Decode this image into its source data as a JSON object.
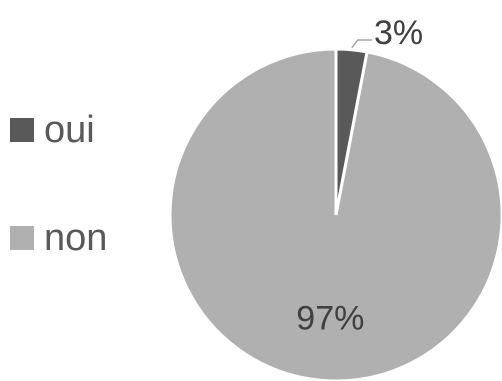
{
  "chart_data": {
    "type": "pie",
    "categories": [
      "oui",
      "non"
    ],
    "values": [
      3,
      97
    ],
    "labels": [
      "3%",
      "97%"
    ],
    "colors": [
      "#595959",
      "#b0b0b0"
    ],
    "legend_position": "left"
  }
}
